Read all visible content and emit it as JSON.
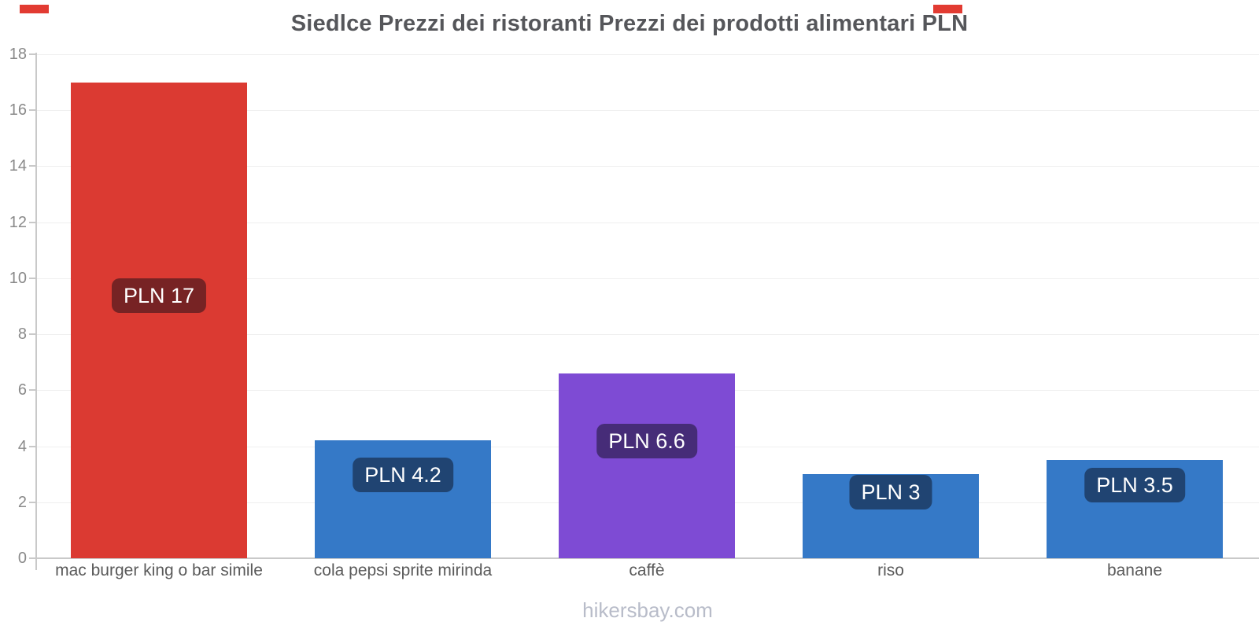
{
  "page": {
    "title": "Siedlce Prezzi dei ristoranti Prezzi dei prodotti alimentari PLN",
    "footer": "hikersbay.com"
  },
  "colors": {
    "title": "#55565a",
    "footer": "#b8bcc9",
    "axis": "#c9c9c9",
    "grid": "#efefef",
    "tick-label": "#8a8a8a",
    "category-label": "#5a5a5a",
    "pill-bg": "rgba(10,10,20,0.48)",
    "pill-text": "#ffffff",
    "nav-dash": "#e23b32"
  },
  "chart_data": {
    "type": "bar",
    "title": "Siedlce Prezzi dei ristoranti Prezzi dei prodotti alimentari PLN",
    "categories": [
      "mac burger king o bar simile",
      "cola pepsi sprite mirinda",
      "caffè",
      "riso",
      "banane"
    ],
    "values": [
      17,
      4.2,
      6.6,
      3,
      3.5
    ],
    "value_labels": [
      "PLN 17",
      "PLN 4.2",
      "PLN 6.6",
      "PLN 3",
      "PLN 3.5"
    ],
    "bar_colors": [
      "#db3a32",
      "#3579c7",
      "#7e4bd4",
      "#3579c7",
      "#3579c7"
    ],
    "currency": "PLN",
    "ylim": [
      0,
      18
    ],
    "yticks": [
      0,
      2,
      4,
      6,
      8,
      10,
      12,
      14,
      16,
      18
    ],
    "xlabel": "",
    "ylabel": "",
    "legend": "none",
    "grid": "horizontal",
    "watermark": "hikersbay.com"
  }
}
